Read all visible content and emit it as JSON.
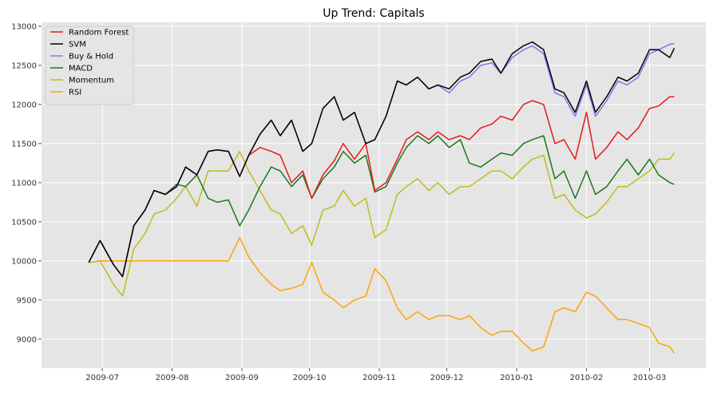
{
  "chart_data": {
    "type": "line",
    "title": "Up Trend: Capitals",
    "xlabel": "",
    "ylabel": "",
    "x_ticks": [
      "2009-07",
      "2009-08",
      "2009-09",
      "2009-10",
      "2009-11",
      "2009-12",
      "2010-01",
      "2010-02",
      "2010-03"
    ],
    "x_tick_dates": [
      "2009-07-01",
      "2009-08-01",
      "2009-09-01",
      "2009-10-01",
      "2009-11-01",
      "2009-12-01",
      "2010-01-01",
      "2010-02-01",
      "2010-03-01"
    ],
    "xlim": [
      "2009-06-04",
      "2010-03-26"
    ],
    "y_ticks": [
      9000,
      9500,
      10000,
      10500,
      11000,
      11500,
      12000,
      12500,
      13000
    ],
    "ylim": [
      8630,
      13050
    ],
    "grid": true,
    "legend_position": "top-left",
    "dates": [
      "2009-06-25",
      "2009-06-30",
      "2009-07-06",
      "2009-07-10",
      "2009-07-15",
      "2009-07-20",
      "2009-07-24",
      "2009-07-29",
      "2009-08-03",
      "2009-08-07",
      "2009-08-12",
      "2009-08-17",
      "2009-08-21",
      "2009-08-26",
      "2009-08-31",
      "2009-09-04",
      "2009-09-09",
      "2009-09-14",
      "2009-09-18",
      "2009-09-23",
      "2009-09-28",
      "2009-10-02",
      "2009-10-07",
      "2009-10-12",
      "2009-10-16",
      "2009-10-21",
      "2009-10-26",
      "2009-10-30",
      "2009-11-04",
      "2009-11-09",
      "2009-11-13",
      "2009-11-18",
      "2009-11-23",
      "2009-11-27",
      "2009-12-02",
      "2009-12-07",
      "2009-12-11",
      "2009-12-16",
      "2009-12-21",
      "2009-12-25",
      "2009-12-30",
      "2010-01-04",
      "2010-01-08",
      "2010-01-13",
      "2010-01-18",
      "2010-01-22",
      "2010-01-27",
      "2010-02-01",
      "2010-02-05",
      "2010-02-10",
      "2010-02-15",
      "2010-02-19",
      "2010-02-24",
      "2010-03-01",
      "2010-03-05",
      "2010-03-10",
      "2010-03-12"
    ],
    "series": [
      {
        "name": "Random Forest",
        "color": "#e41a1c",
        "values": [
          9980,
          10260,
          9950,
          9800,
          10450,
          10650,
          10900,
          10850,
          10950,
          11200,
          11100,
          11400,
          11420,
          11400,
          11080,
          11350,
          11450,
          11400,
          11350,
          11000,
          11150,
          10800,
          11100,
          11280,
          11500,
          11300,
          11500,
          10900,
          11000,
          11300,
          11550,
          11650,
          11550,
          11650,
          11550,
          11600,
          11550,
          11700,
          11750,
          11850,
          11800,
          12000,
          12050,
          12000,
          11500,
          11550,
          11300,
          11900,
          11300,
          11450,
          11650,
          11550,
          11700,
          11950,
          11980,
          12100,
          12100
        ]
      },
      {
        "name": "SVM",
        "color": "#000000",
        "values": [
          9980,
          10260,
          9950,
          9800,
          10450,
          10650,
          10900,
          10850,
          10950,
          11200,
          11100,
          11400,
          11420,
          11400,
          11080,
          11350,
          11620,
          11800,
          11600,
          11800,
          11400,
          11500,
          11950,
          12100,
          11800,
          11900,
          11500,
          11550,
          11850,
          12300,
          12250,
          12350,
          12200,
          12250,
          12200,
          12350,
          12400,
          12550,
          12580,
          12400,
          12650,
          12750,
          12800,
          12700,
          12200,
          12150,
          11900,
          12300,
          11900,
          12100,
          12350,
          12300,
          12400,
          12700,
          12700,
          12600,
          12720
        ]
      },
      {
        "name": "Buy & Hold",
        "color": "#7b7bf2",
        "values": [
          9980,
          10260,
          9950,
          9800,
          10450,
          10650,
          10900,
          10850,
          10950,
          11200,
          11100,
          11400,
          11420,
          11400,
          11080,
          11350,
          11620,
          11800,
          11600,
          11800,
          11400,
          11500,
          11950,
          12100,
          11800,
          11900,
          11500,
          11550,
          11850,
          12300,
          12250,
          12350,
          12200,
          12250,
          12150,
          12300,
          12350,
          12500,
          12530,
          12400,
          12600,
          12700,
          12750,
          12650,
          12150,
          12100,
          11850,
          12250,
          11850,
          12050,
          12300,
          12250,
          12350,
          12650,
          12700,
          12770,
          12780
        ]
      },
      {
        "name": "MACD",
        "color": "#1a7a1a",
        "values": [
          9980,
          10260,
          9950,
          9800,
          10450,
          10650,
          10900,
          10850,
          10980,
          10950,
          11100,
          10800,
          10750,
          10780,
          10450,
          10650,
          10950,
          11200,
          11150,
          10950,
          11100,
          10800,
          11050,
          11200,
          11400,
          11250,
          11350,
          10880,
          10950,
          11250,
          11450,
          11600,
          11500,
          11600,
          11450,
          11550,
          11250,
          11200,
          11300,
          11380,
          11350,
          11500,
          11550,
          11600,
          11050,
          11150,
          10800,
          11150,
          10850,
          10950,
          11150,
          11300,
          11100,
          11300,
          11100,
          11000,
          10980
        ]
      },
      {
        "name": "Momentum",
        "color": "#bdbd1f",
        "values": [
          9980,
          10000,
          9700,
          9550,
          10150,
          10350,
          10600,
          10650,
          10800,
          10950,
          10700,
          11150,
          11150,
          11150,
          11400,
          11150,
          10900,
          10650,
          10600,
          10350,
          10450,
          10200,
          10650,
          10700,
          10900,
          10700,
          10800,
          10300,
          10400,
          10850,
          10950,
          11050,
          10900,
          11000,
          10850,
          10950,
          10950,
          11050,
          11150,
          11150,
          11050,
          11200,
          11300,
          11350,
          10800,
          10850,
          10650,
          10550,
          10600,
          10750,
          10950,
          10950,
          11050,
          11150,
          11300,
          11300,
          11380
        ]
      },
      {
        "name": "RSI",
        "color": "#ffa500",
        "values": [
          9980,
          10000,
          10000,
          10000,
          10000,
          10000,
          10000,
          10000,
          10000,
          10000,
          10000,
          10000,
          10000,
          10000,
          10300,
          10050,
          9850,
          9700,
          9620,
          9650,
          9700,
          9980,
          9600,
          9500,
          9400,
          9500,
          9550,
          9900,
          9750,
          9400,
          9250,
          9350,
          9250,
          9300,
          9300,
          9250,
          9300,
          9150,
          9050,
          9100,
          9100,
          8950,
          8850,
          8900,
          9350,
          9400,
          9350,
          9600,
          9550,
          9400,
          9250,
          9250,
          9200,
          9150,
          8950,
          8900,
          8820
        ]
      }
    ]
  }
}
